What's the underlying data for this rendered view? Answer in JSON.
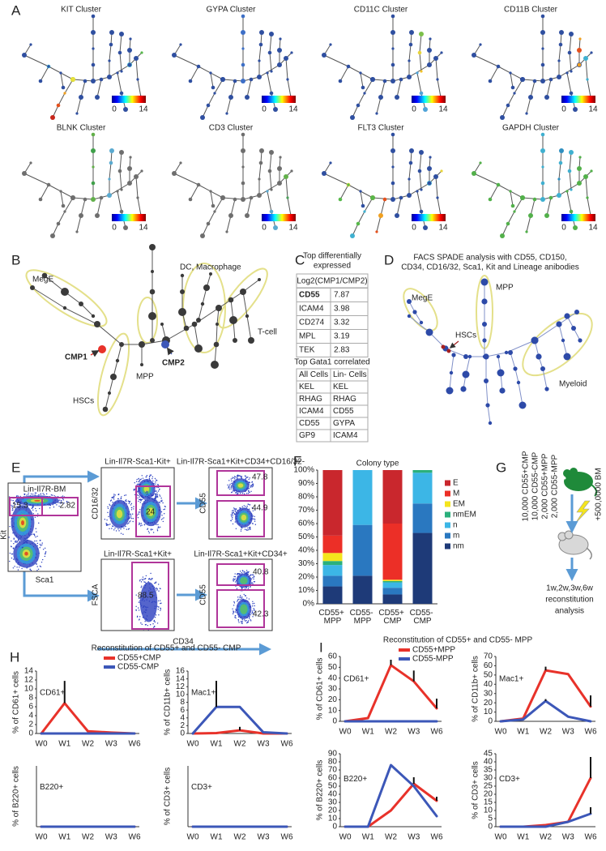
{
  "panel_a": {
    "letter": "A",
    "clusters": [
      "KIT Cluster",
      "GYPA Cluster",
      "CD11C Cluster",
      "CD11B Cluster",
      "BLNK Cluster",
      "CD3 Cluster",
      "FLT3 Cluster",
      "GAPDH Cluster"
    ],
    "scale_min": 0,
    "scale_max": 14
  },
  "panel_b": {
    "letter": "B",
    "mege": "MegE",
    "dc": "DC, Macrophage",
    "tcell": "T-cell",
    "cmp1": "CMP1",
    "cmp2": "CMP2",
    "mpp": "MPP",
    "hscs": "HSCs"
  },
  "panel_c": {
    "letter": "C",
    "title": [
      "Top differentially",
      "expressed"
    ],
    "table1": {
      "header": "Log2(CMP1/CMP2)",
      "rows": [
        [
          "CD55",
          7.87
        ],
        [
          "ICAM4",
          3.98
        ],
        [
          "CD274",
          3.32
        ],
        [
          "MPL",
          3.19
        ],
        [
          "TEK",
          2.83
        ]
      ]
    },
    "title2": "Top Gata1 correlated",
    "table2": {
      "header": [
        "All Cells",
        "Lin- Cells"
      ],
      "rows": [
        [
          "KEL",
          "KEL"
        ],
        [
          "RHAG",
          "RHAG"
        ],
        [
          "ICAM4",
          "CD55"
        ],
        [
          "CD55",
          "GYPA"
        ],
        [
          "GP9",
          "ICAM4"
        ]
      ]
    }
  },
  "panel_d": {
    "letter": "D",
    "title": [
      "FACS SPADE analysis with CD55, CD150,",
      "CD34, CD16/32, Sca1, Kit and Lineage anibodies"
    ],
    "mege": "MegE",
    "mpp": "MPP",
    "hscs": "HSCs",
    "myeloid": "Myeloid"
  },
  "panel_e": {
    "letter": "E",
    "plots": [
      {
        "title": "Lin-Il7R-BM",
        "xlabel": "Sca1",
        "ylabel": "Kit",
        "gates": [
          15.3,
          2.82
        ]
      },
      {
        "title": "Lin-Il7R-Sca1-Kit+",
        "ylabel": "CD16/32",
        "gates": [
          24
        ]
      },
      {
        "title": "Lin-Il7R-Sca1+Kit+CD34+CD16/32-",
        "ylabel": "CD55",
        "gates": [
          47.8,
          44.9
        ]
      },
      {
        "title": "Lin-Il7R-Sca1+Kit+",
        "ylabel": "FSCA",
        "gates": [
          88.5
        ]
      },
      {
        "title": "Lin-Il7R-Sca1+Kit+CD34+",
        "ylabel": "CD55",
        "gates": [
          40.8,
          42.3
        ]
      }
    ],
    "xlabel": "CD34"
  },
  "panel_g": {
    "letter": "G",
    "cells": [
      "10,000 CD55+CMP",
      "10,000 CD55-CMP",
      "2,000 CD55+MPP",
      "2,000 CD55-MPP"
    ],
    "bm": "+500,0000 BM",
    "analysis": [
      "1w,2w,3w,6w",
      "reconstitution",
      "analysis"
    ]
  },
  "chart_data": [
    {
      "type": "bar",
      "stacked": true,
      "panel": "F",
      "title": "Colony type",
      "categories": [
        "CD55+ MPP",
        "CD55- MPP",
        "CD55+ CMP",
        "CD55- CMP"
      ],
      "ylim": [
        0,
        100
      ],
      "yticks": [
        {
          "value": 0,
          "label": "0%"
        },
        {
          "value": 10,
          "label": "10%"
        },
        {
          "value": 20,
          "label": "20%"
        },
        {
          "value": 30,
          "label": "30%"
        },
        {
          "value": 40,
          "label": "40%"
        },
        {
          "value": 50,
          "label": "50%"
        },
        {
          "value": 60,
          "label": "60%"
        },
        {
          "value": 70,
          "label": "70%"
        },
        {
          "value": 80,
          "label": "80%"
        },
        {
          "value": 90,
          "label": "90%"
        },
        {
          "value": 100,
          "label": "100%"
        }
      ],
      "series": [
        {
          "name": "nm",
          "color": "#1e3a78",
          "values": [
            13,
            21,
            7,
            53
          ]
        },
        {
          "name": "m",
          "color": "#2a78c0",
          "values": [
            8,
            38,
            5,
            22
          ]
        },
        {
          "name": "n",
          "color": "#3cb6e6",
          "values": [
            8,
            41,
            4,
            23
          ]
        },
        {
          "name": "nmEM",
          "color": "#2bb07c",
          "values": [
            3,
            0,
            1,
            2
          ]
        },
        {
          "name": "EM",
          "color": "#f4e51d",
          "values": [
            6,
            0,
            1,
            0
          ]
        },
        {
          "name": "M",
          "color": "#ec2f27",
          "values": [
            13,
            0,
            42,
            0
          ]
        },
        {
          "name": "E",
          "color": "#c9272d",
          "values": [
            49,
            0,
            40,
            0
          ]
        }
      ]
    },
    {
      "type": "line",
      "panel": "H",
      "title": "Reconstitution of CD55+ and CD55- CMP",
      "categories": [
        "W0",
        "W1",
        "W2",
        "W3",
        "W6"
      ],
      "series": [
        {
          "name": "CD55+CMP",
          "color": "#e8322a"
        },
        {
          "name": "CD55-CMP",
          "color": "#3c57b8"
        }
      ],
      "subplots": [
        {
          "label": "CD61+",
          "ylabel": "% of CD61+ cells",
          "ylim": [
            0,
            14
          ],
          "yticks": [
            0,
            2,
            4,
            6,
            8,
            10,
            12,
            14
          ],
          "values": [
            [
              0,
              6.8,
              0.5,
              0.2,
              0
            ],
            [
              0,
              0,
              0,
              0,
              0
            ]
          ],
          "errors": [
            [
              null,
              5,
              null,
              null,
              null
            ],
            [
              null,
              null,
              null,
              null,
              null
            ]
          ]
        },
        {
          "label": "Mac1+",
          "ylabel": "% of CD11b+ cells",
          "ylim": [
            0,
            16
          ],
          "yticks": [
            0,
            2,
            4,
            6,
            8,
            10,
            12,
            14,
            16
          ],
          "values": [
            [
              0,
              0.1,
              0.8,
              0,
              0
            ],
            [
              0,
              6.8,
              6.8,
              0.3,
              0
            ]
          ],
          "errors": [
            [
              null,
              null,
              0.9,
              null,
              null
            ],
            [
              null,
              6.7,
              null,
              null,
              null
            ]
          ]
        },
        {
          "label": "B220+",
          "ylabel": "% of B220+ cells",
          "ylim": [
            0,
            10
          ],
          "values": [
            [
              0,
              0,
              0,
              0,
              0
            ],
            [
              0,
              0,
              0,
              0,
              0
            ]
          ],
          "errors": [
            [
              null,
              null,
              null,
              null,
              null
            ],
            [
              null,
              null,
              null,
              null,
              null
            ]
          ]
        },
        {
          "label": "CD3+",
          "ylabel": "% of CD3+ cells",
          "ylim": [
            0,
            10
          ],
          "values": [
            [
              0,
              0,
              0,
              0,
              0
            ],
            [
              0,
              0,
              0,
              0,
              0
            ]
          ],
          "errors": [
            [
              null,
              null,
              null,
              null,
              null
            ],
            [
              null,
              null,
              null,
              null,
              null
            ]
          ]
        }
      ]
    },
    {
      "type": "line",
      "panel": "I",
      "title": "Reconstitution of CD55+ and CD55- MPP",
      "categories": [
        "W0",
        "W1",
        "W2",
        "W3",
        "W6"
      ],
      "series": [
        {
          "name": "CD55+MPP",
          "color": "#e8322a"
        },
        {
          "name": "CD55-MPP",
          "color": "#3c57b8"
        }
      ],
      "subplots": [
        {
          "label": "CD61+",
          "ylabel": "% of CD61+ cells",
          "ylim": [
            0,
            60
          ],
          "yticks": [
            0,
            10,
            20,
            30,
            40,
            50,
            60
          ],
          "values": [
            [
              0,
              3,
              52,
              37,
              12
            ],
            [
              0,
              0,
              0,
              0,
              0
            ]
          ],
          "errors": [
            [
              null,
              null,
              5,
              10,
              9
            ],
            [
              null,
              null,
              null,
              null,
              null
            ]
          ]
        },
        {
          "label": "Mac1+",
          "ylabel": "% of CD11b+ cells",
          "ylim": [
            0,
            70
          ],
          "yticks": [
            0,
            10,
            20,
            30,
            40,
            50,
            60,
            70
          ],
          "values": [
            [
              0,
              3,
              55,
              51,
              16
            ],
            [
              0,
              2,
              22,
              5,
              0
            ]
          ],
          "errors": [
            [
              null,
              null,
              4,
              null,
              12
            ],
            [
              null,
              null,
              2,
              null,
              null
            ]
          ]
        },
        {
          "label": "B220+",
          "ylabel": "% of B220+ cells",
          "ylim": [
            0,
            90
          ],
          "yticks": [
            0,
            10,
            20,
            30,
            40,
            50,
            60,
            70,
            80,
            90
          ],
          "values": [
            [
              0,
              0,
              20,
              53,
              32
            ],
            [
              0,
              0,
              76,
              50,
              13
            ]
          ],
          "errors": [
            [
              null,
              null,
              null,
              8,
              5
            ],
            [
              null,
              null,
              null,
              null,
              null
            ]
          ]
        },
        {
          "label": "CD3+",
          "ylabel": "% of CD3+ cells",
          "ylim": [
            0,
            45
          ],
          "yticks": [
            0,
            5,
            10,
            15,
            20,
            25,
            30,
            35,
            40,
            45
          ],
          "values": [
            [
              0,
              0,
              1,
              3,
              30
            ],
            [
              0,
              0,
              0,
              3,
              8
            ]
          ],
          "errors": [
            [
              null,
              null,
              null,
              null,
              13
            ],
            [
              null,
              null,
              null,
              null,
              4
            ]
          ]
        }
      ]
    }
  ]
}
